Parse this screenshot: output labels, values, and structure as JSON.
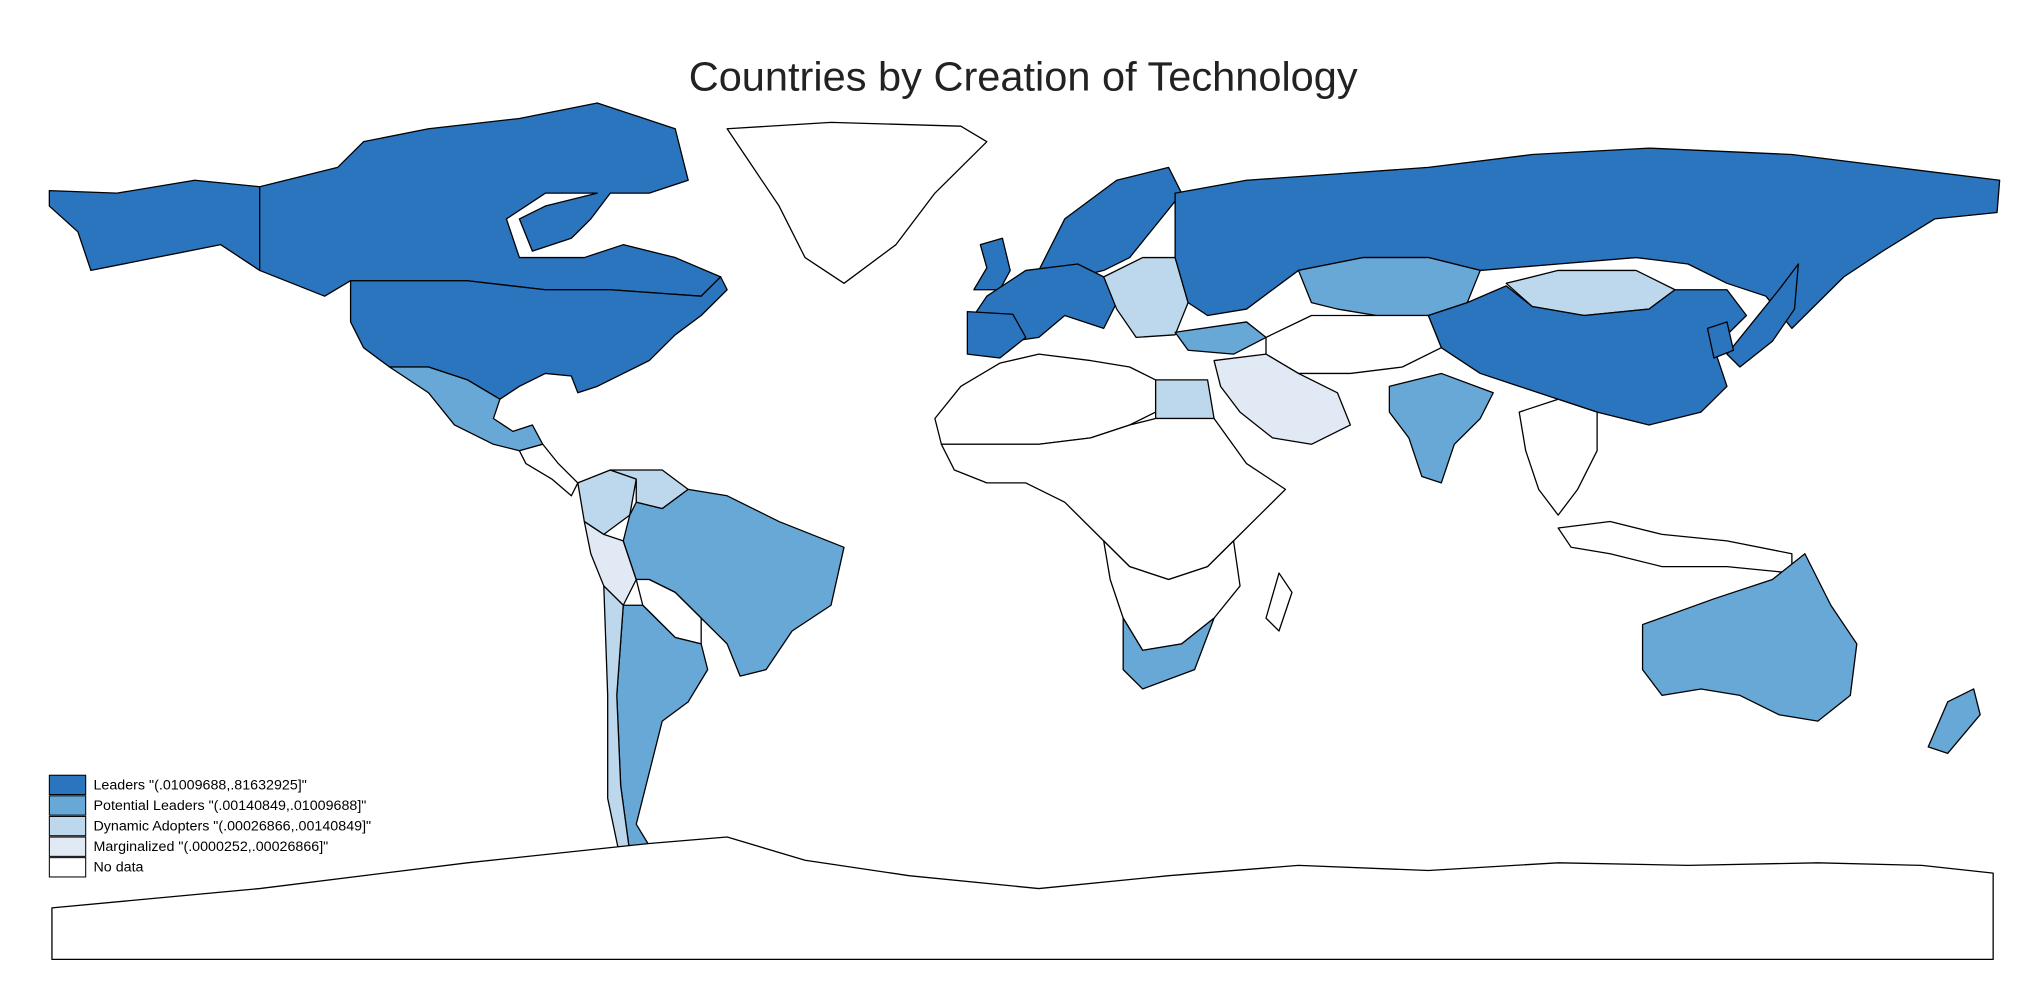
{
  "title": "Countries by Creation of Technology",
  "legend": [
    {
      "label": "Leaders \"(.01009688,.81632925]\"",
      "color": "#2b74be"
    },
    {
      "label": "Potential Leaders \"(.00140849,.01009688]\"",
      "color": "#67a8d7"
    },
    {
      "label": "Dynamic Adopters \"(.00026866,.00140849]\"",
      "color": "#bdd7ec"
    },
    {
      "label": "Marginalized \"(.0000252,.00026866]\"",
      "color": "#e0e9f4"
    },
    {
      "label": "No data",
      "color": "#ffffff"
    }
  ]
}
